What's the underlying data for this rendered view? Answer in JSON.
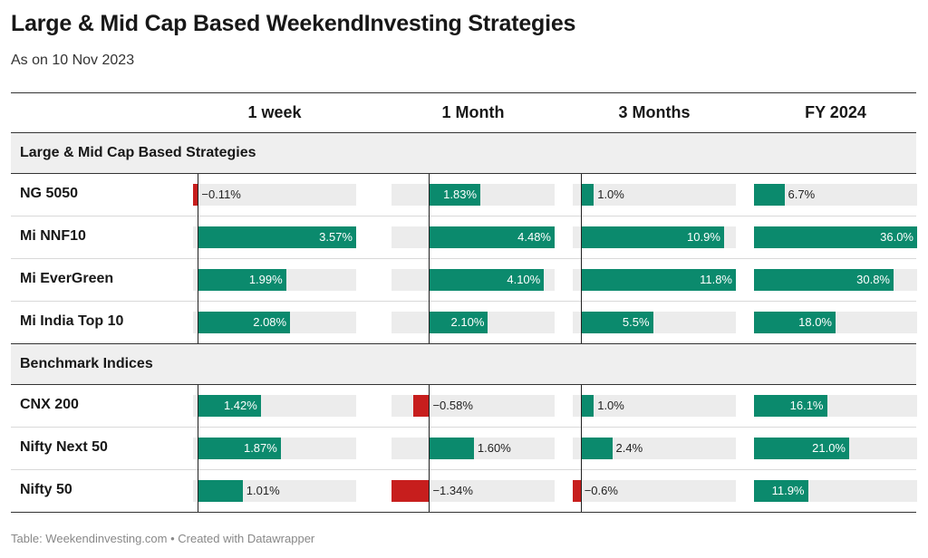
{
  "title": "Large & Mid Cap Based WeekendInvesting Strategies",
  "subtitle": "As on 10 Nov 2023",
  "footer": "Table: Weekendinvesting.com • Created with Datawrapper",
  "colors": {
    "positive": "#0b8a6d",
    "negative": "#c71e1d",
    "track": "#ececec",
    "group_bg": "#efefef"
  },
  "chart_data": {
    "type": "table",
    "columns": [
      "1 week",
      "1 Month",
      "3 Months",
      "FY 2024"
    ],
    "column_ranges": [
      [
        -0.11,
        3.57
      ],
      [
        -1.34,
        4.48
      ],
      [
        -0.6,
        11.8
      ],
      [
        0,
        36.0
      ]
    ],
    "groups": [
      {
        "name": "Large & Mid Cap Based Strategies",
        "rows": [
          {
            "name": "NG 5050",
            "values": [
              -0.11,
              1.83,
              1.0,
              6.7
            ],
            "labels": [
              "−0.11%",
              "1.83%",
              "1.0%",
              "6.7%"
            ]
          },
          {
            "name": "Mi NNF10",
            "values": [
              3.57,
              4.48,
              10.9,
              36.0
            ],
            "labels": [
              "3.57%",
              "4.48%",
              "10.9%",
              "36.0%"
            ]
          },
          {
            "name": "Mi EverGreen",
            "values": [
              1.99,
              4.1,
              11.8,
              30.8
            ],
            "labels": [
              "1.99%",
              "4.10%",
              "11.8%",
              "30.8%"
            ]
          },
          {
            "name": "Mi India Top 10",
            "values": [
              2.08,
              2.1,
              5.5,
              18.0
            ],
            "labels": [
              "2.08%",
              "2.10%",
              "5.5%",
              "18.0%"
            ]
          }
        ]
      },
      {
        "name": "Benchmark Indices",
        "rows": [
          {
            "name": "CNX 200",
            "values": [
              1.42,
              -0.58,
              1.0,
              16.1
            ],
            "labels": [
              "1.42%",
              "−0.58%",
              "1.0%",
              "16.1%"
            ]
          },
          {
            "name": "Nifty Next 50",
            "values": [
              1.87,
              1.6,
              2.4,
              21.0
            ],
            "labels": [
              "1.87%",
              "1.60%",
              "2.4%",
              "21.0%"
            ]
          },
          {
            "name": "Nifty 50",
            "values": [
              1.01,
              -1.34,
              -0.6,
              11.9
            ],
            "labels": [
              "1.01%",
              "−1.34%",
              "−0.6%",
              "11.9%"
            ]
          }
        ]
      }
    ]
  }
}
